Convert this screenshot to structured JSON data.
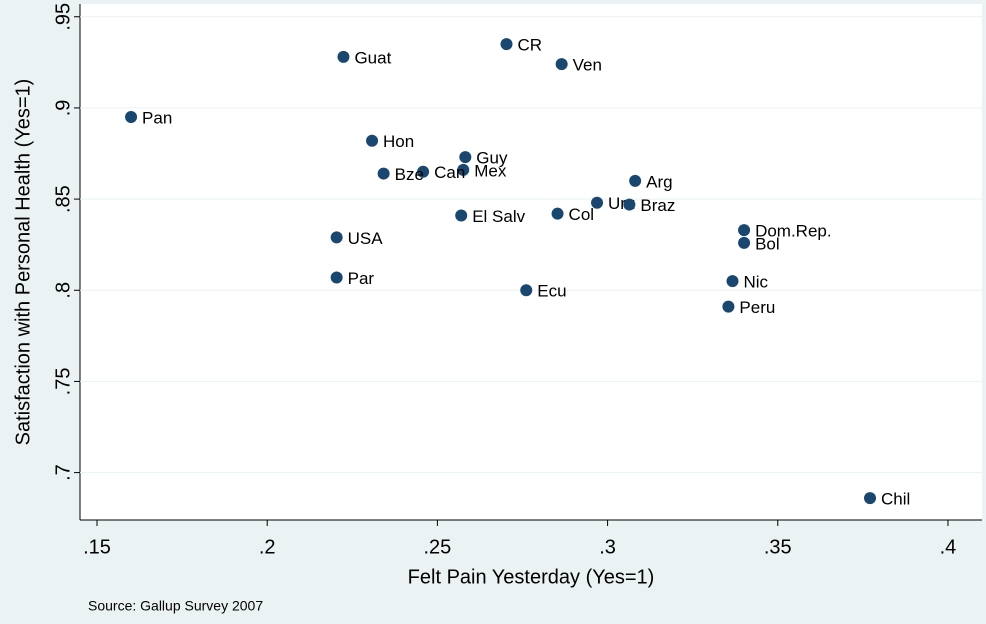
{
  "chart_data": {
    "type": "scatter",
    "x_label": "Felt Pain Yesterday (Yes=1)",
    "y_label": "Satisfaction with Personal Health (Yes=1)",
    "note": "Source: Gallup Survey 2007",
    "color": "#1a476f",
    "grid": true,
    "labels": [
      "Pan",
      "Guat",
      "CR",
      "Ven",
      "Hon",
      "Guy",
      "Mex",
      "Can",
      "Bze",
      "Arg",
      "Uru",
      "Braz",
      "Col",
      "El Salv",
      "USA",
      "Dom.Rep.",
      "Bol",
      "Par",
      "Ecu",
      "Nic",
      "Peru",
      "Chil"
    ],
    "x": [
      0.16,
      0.2224,
      0.2703,
      0.2865,
      0.2308,
      0.2582,
      0.2576,
      0.2458,
      0.2342,
      0.3081,
      0.2969,
      0.3064,
      0.2853,
      0.257,
      0.2204,
      0.3401,
      0.3401,
      0.2204,
      0.2761,
      0.3367,
      0.3355,
      0.3771
    ],
    "values": [
      0.895,
      0.928,
      0.935,
      0.924,
      0.882,
      0.873,
      0.866,
      0.865,
      0.864,
      0.86,
      0.848,
      0.847,
      0.842,
      0.841,
      0.829,
      0.833,
      0.826,
      0.807,
      0.8,
      0.805,
      0.791,
      0.686
    ],
    "xlim": [
      0.145,
      0.41
    ],
    "ylim": [
      0.674,
      0.957
    ],
    "xticks": [
      {
        "value": 0.15,
        "label": ".15"
      },
      {
        "value": 0.2,
        "label": ".2"
      },
      {
        "value": 0.25,
        "label": ".25"
      },
      {
        "value": 0.3,
        "label": ".3"
      },
      {
        "value": 0.35,
        "label": ".35"
      },
      {
        "value": 0.4,
        "label": ".4"
      }
    ],
    "yticks": [
      {
        "value": 0.7,
        "label": ".7"
      },
      {
        "value": 0.75,
        "label": ".75"
      },
      {
        "value": 0.8,
        "label": ".8"
      },
      {
        "value": 0.85,
        "label": ".85"
      },
      {
        "value": 0.9,
        "label": ".9"
      },
      {
        "value": 0.95,
        "label": ".95"
      }
    ]
  }
}
